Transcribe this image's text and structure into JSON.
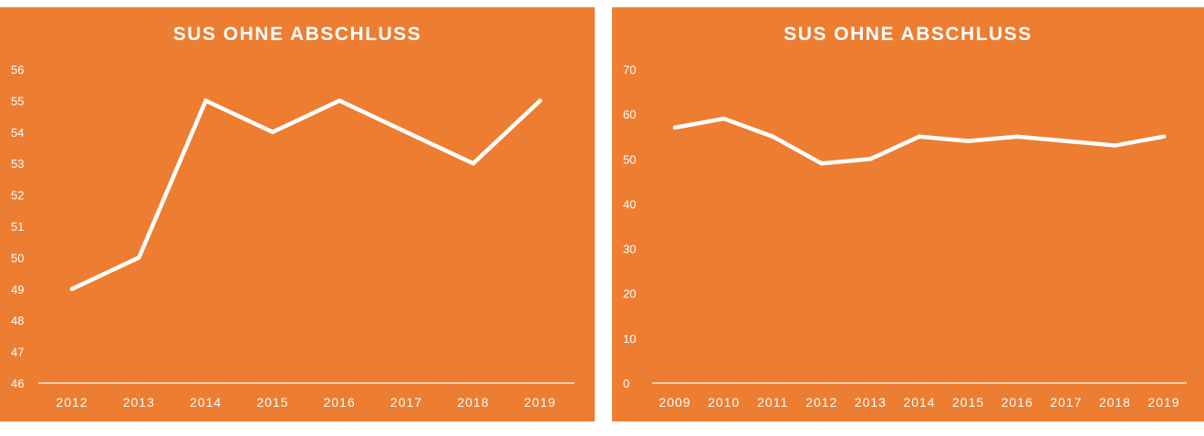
{
  "colors": {
    "background": "#ED7D31",
    "foreground": "#FFFFFF"
  },
  "chart_data": [
    {
      "type": "line",
      "title": "SUS OHNE ABSCHLUSS",
      "xlabel": "",
      "ylabel": "",
      "categories": [
        "2012",
        "2013",
        "2014",
        "2015",
        "2016",
        "2017",
        "2018",
        "2019"
      ],
      "values": [
        49,
        50,
        55,
        54,
        55,
        54,
        53,
        55
      ],
      "ylim": [
        46,
        56
      ],
      "yticks": [
        46,
        47,
        48,
        49,
        50,
        51,
        52,
        53,
        54,
        55,
        56
      ],
      "drop_lines": true,
      "grid": false
    },
    {
      "type": "line",
      "title": "SUS OHNE ABSCHLUSS",
      "xlabel": "",
      "ylabel": "",
      "categories": [
        "2009",
        "2010",
        "2011",
        "2012",
        "2013",
        "2014",
        "2015",
        "2016",
        "2017",
        "2018",
        "2019"
      ],
      "values": [
        57,
        59,
        55,
        49,
        50,
        55,
        54,
        55,
        54,
        53,
        55
      ],
      "ylim": [
        0,
        70
      ],
      "yticks": [
        0,
        10,
        20,
        30,
        40,
        50,
        60,
        70
      ],
      "drop_lines": true,
      "grid": false
    }
  ]
}
